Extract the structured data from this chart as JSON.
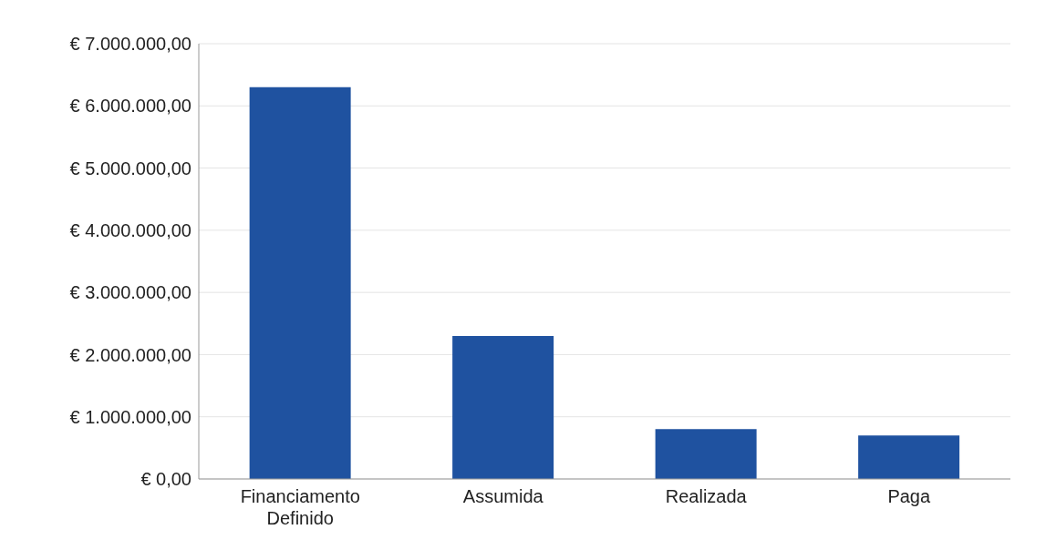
{
  "chart_data": {
    "type": "bar",
    "categories": [
      "Financiamento Definido",
      "Assumida",
      "Realizada",
      "Paga"
    ],
    "values": [
      6300000,
      2300000,
      800000,
      700000
    ],
    "color": "#1f52a0",
    "ylim": [
      0,
      7000000
    ],
    "yticks": [
      {
        "value": 0,
        "label": "€ 0,00"
      },
      {
        "value": 1000000,
        "label": "€ 1.000.000,00"
      },
      {
        "value": 2000000,
        "label": "€ 2.000.000,00"
      },
      {
        "value": 3000000,
        "label": "€ 3.000.000,00"
      },
      {
        "value": 4000000,
        "label": "€ 4.000.000,00"
      },
      {
        "value": 5000000,
        "label": "€ 5.000.000,00"
      },
      {
        "value": 6000000,
        "label": "€ 6.000.000,00"
      },
      {
        "value": 7000000,
        "label": "€ 7.000.000,00"
      }
    ],
    "grid": "y"
  }
}
